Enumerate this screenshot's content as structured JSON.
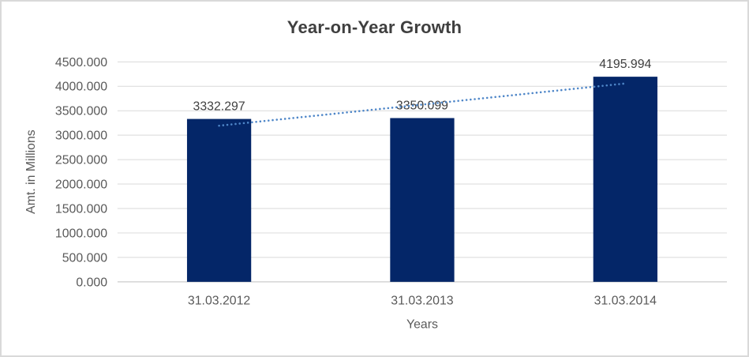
{
  "window": {
    "background": "#ffffff",
    "border_color": "#d9d9d9"
  },
  "chart_data": {
    "type": "bar",
    "title": "Year-on-Year Growth",
    "xlabel": "Years",
    "ylabel": "Amt. in Millions",
    "categories": [
      "31.03.2012",
      "31.03.2013",
      "31.03.2014"
    ],
    "values": [
      3332.297,
      3350.099,
      4195.994
    ],
    "data_labels": [
      "3332.297",
      "3350.099",
      "4195.994"
    ],
    "ylim": [
      0,
      4500
    ],
    "ytick_step": 500,
    "ytick_labels": [
      "0.000",
      "500.000",
      "1000.000",
      "1500.000",
      "2000.000",
      "2500.000",
      "3000.000",
      "3500.000",
      "4000.000",
      "4500.000"
    ],
    "grid": true,
    "legend": "none",
    "trendline": {
      "type": "linear",
      "style": "dotted"
    }
  },
  "colors": {
    "bar": "#042668",
    "trendline": "#4e86c8",
    "gridline": "#d9d9d9",
    "axis_line": "#bfbfbf",
    "tick_label": "#595959",
    "axis_title": "#595959",
    "data_label": "#404040",
    "title": "#3f3f3f"
  }
}
